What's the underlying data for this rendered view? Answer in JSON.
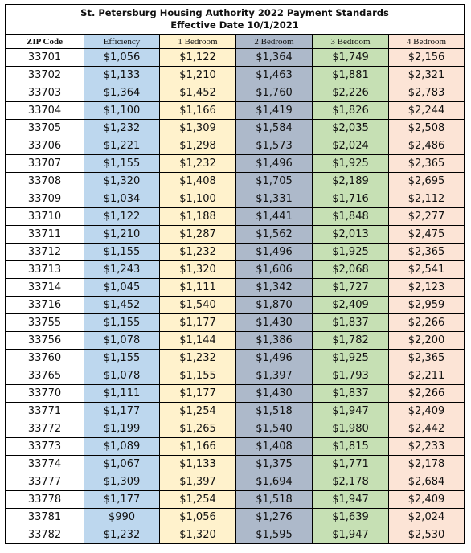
{
  "title_line1": "St. Petersburg Housing Authority 2022 Payment Standards",
  "title_line2": "Effective Date 10/1/2021",
  "headers": [
    "ZIP Code",
    "Efficiency",
    "1 Bedroom",
    "2 Bedroom",
    "3 Bedroom",
    "4 Bedroom"
  ],
  "rows": [
    [
      "33701",
      "$1,056",
      "$1,122",
      "$1,364",
      "$1,749",
      "$2,156"
    ],
    [
      "33702",
      "$1,133",
      "$1,210",
      "$1,463",
      "$1,881",
      "$2,321"
    ],
    [
      "33703",
      "$1,364",
      "$1,452",
      "$1,760",
      "$2,226",
      "$2,783"
    ],
    [
      "33704",
      "$1,100",
      "$1,166",
      "$1,419",
      "$1,826",
      "$2,244"
    ],
    [
      "33705",
      "$1,232",
      "$1,309",
      "$1,584",
      "$2,035",
      "$2,508"
    ],
    [
      "33706",
      "$1,221",
      "$1,298",
      "$1,573",
      "$2,024",
      "$2,486"
    ],
    [
      "33707",
      "$1,155",
      "$1,232",
      "$1,496",
      "$1,925",
      "$2,365"
    ],
    [
      "33708",
      "$1,320",
      "$1,408",
      "$1,705",
      "$2,189",
      "$2,695"
    ],
    [
      "33709",
      "$1,034",
      "$1,100",
      "$1,331",
      "$1,716",
      "$2,112"
    ],
    [
      "33710",
      "$1,122",
      "$1,188",
      "$1,441",
      "$1,848",
      "$2,277"
    ],
    [
      "33711",
      "$1,210",
      "$1,287",
      "$1,562",
      "$2,013",
      "$2,475"
    ],
    [
      "33712",
      "$1,155",
      "$1,232",
      "$1,496",
      "$1,925",
      "$2,365"
    ],
    [
      "33713",
      "$1,243",
      "$1,320",
      "$1,606",
      "$2,068",
      "$2,541"
    ],
    [
      "33714",
      "$1,045",
      "$1,111",
      "$1,342",
      "$1,727",
      "$2,123"
    ],
    [
      "33716",
      "$1,452",
      "$1,540",
      "$1,870",
      "$2,409",
      "$2,959"
    ],
    [
      "33755",
      "$1,155",
      "$1,177",
      "$1,430",
      "$1,837",
      "$2,266"
    ],
    [
      "33756",
      "$1,078",
      "$1,144",
      "$1,386",
      "$1,782",
      "$2,200"
    ],
    [
      "33760",
      "$1,155",
      "$1,232",
      "$1,496",
      "$1,925",
      "$2,365"
    ],
    [
      "33765",
      "$1,078",
      "$1,155",
      "$1,397",
      "$1,793",
      "$2,211"
    ],
    [
      "33770",
      "$1,111",
      "$1,177",
      "$1,430",
      "$1,837",
      "$2,266"
    ],
    [
      "33771",
      "$1,177",
      "$1,254",
      "$1,518",
      "$1,947",
      "$2,409"
    ],
    [
      "33772",
      "$1,199",
      "$1,265",
      "$1,540",
      "$1,980",
      "$2,442"
    ],
    [
      "33773",
      "$1,089",
      "$1,166",
      "$1,408",
      "$1,815",
      "$2,233"
    ],
    [
      "33774",
      "$1,067",
      "$1,133",
      "$1,375",
      "$1,771",
      "$2,178"
    ],
    [
      "33777",
      "$1,309",
      "$1,397",
      "$1,694",
      "$2,178",
      "$2,684"
    ],
    [
      "33778",
      "$1,177",
      "$1,254",
      "$1,518",
      "$1,947",
      "$2,409"
    ],
    [
      "33781",
      "$990",
      "$1,056",
      "$1,276",
      "$1,639",
      "$2,024"
    ],
    [
      "33782",
      "$1,232",
      "$1,320",
      "$1,595",
      "$1,947",
      "$2,530"
    ]
  ],
  "column_colors": {
    "zip": "#ffffff",
    "efficiency": "#bdd7ee",
    "bedroom_1": "#fff2cc",
    "bedroom_2": "#adb9ca",
    "bedroom_3": "#c6e0b4",
    "bedroom_4": "#fce4d6"
  }
}
